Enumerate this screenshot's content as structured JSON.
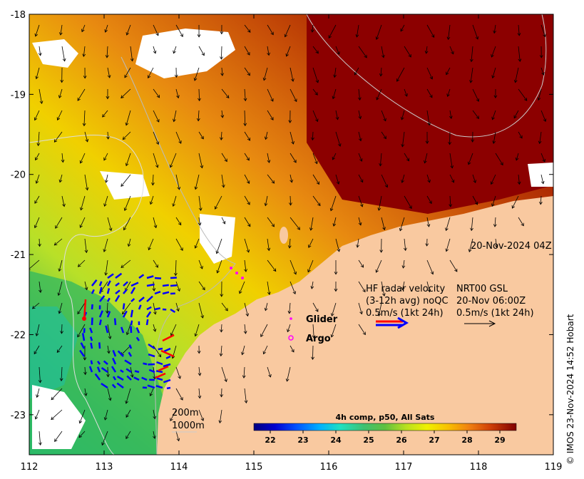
{
  "map": {
    "lon_ticks": [
      "112",
      "113",
      "114",
      "115",
      "116",
      "117",
      "118",
      "119"
    ],
    "lat_ticks": [
      "-18",
      "-19",
      "-20",
      "-21",
      "-22",
      "-23"
    ],
    "lon_range": [
      112,
      119
    ],
    "lat_range": [
      -23.5,
      -18
    ],
    "timestamp": "20-Nov-2024 04Z"
  },
  "legend": {
    "hf_line1": "HF radar velocity",
    "hf_line2": "(3-12h avg) noQC",
    "hf_line3": "0.5m/s (1kt 24h)",
    "nrt_line1": "NRT00 GSL",
    "nrt_line2": "20-Nov 06:00Z",
    "nrt_line3": "0.5m/s (1kt 24h)",
    "glider_label": "Glider",
    "argo_label": "Argo",
    "glider_color": "#ff00ff",
    "argo_color": "#ff00ff",
    "hf_arrow_colors": [
      "#ff0000",
      "#0000ff"
    ]
  },
  "bathymetry": {
    "contour_200": "200m",
    "contour_1000": "1000m"
  },
  "colorbar": {
    "title": "4h comp, p50, All Sats",
    "ticks": [
      "22",
      "23",
      "24",
      "25",
      "26",
      "27",
      "28",
      "29"
    ],
    "range": [
      21.5,
      29.5
    ],
    "colors": [
      "#00007f",
      "#0000d0",
      "#0040ff",
      "#0090ff",
      "#00d8ff",
      "#20e0c0",
      "#40c080",
      "#40b040",
      "#70d030",
      "#b0e020",
      "#f0f000",
      "#f8c800",
      "#f09000",
      "#e06000",
      "#c03000",
      "#a00000",
      "#800000"
    ]
  },
  "credit": "© IMOS 23-Nov-2024 14:52 Hobart"
}
